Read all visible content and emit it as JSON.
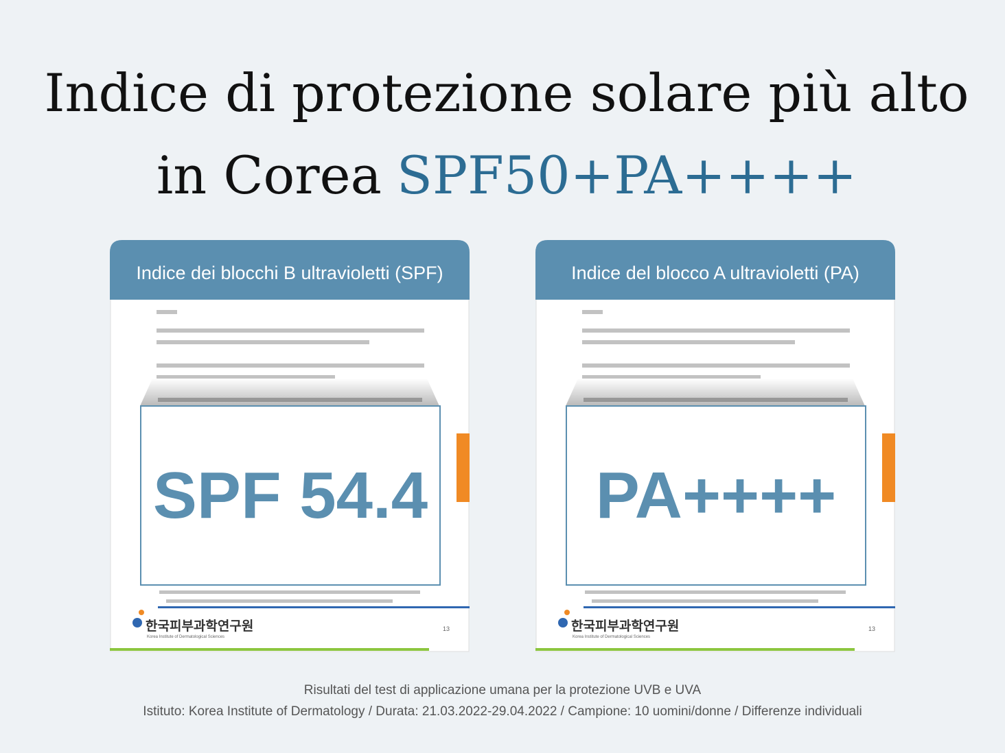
{
  "header": {
    "title_line1": "Indice di protezione solare più alto",
    "title_line2": "in Corea",
    "title_highlight": "SPF50+PA++++"
  },
  "cards": [
    {
      "heading": "Indice dei blocchi B ultravioletti (SPF)",
      "result": "SPF 54.4",
      "institute_logo": "한국피부과학연구원",
      "institute_name": "Korea Institute of Dermatological Sciences",
      "page_number": "13"
    },
    {
      "heading": "Indice del blocco A ultravioletti (PA)",
      "result": "PA++++",
      "institute_logo": "한국피부과학연구원",
      "institute_name": "Korea Institute of Dermatological Sciences",
      "page_number": "13"
    }
  ],
  "footer": {
    "line1": "Risultati del test di applicazione umana per la protezione UVB e UVA",
    "line2": "Istituto: Korea Institute of Dermatology / Durata: 21.03.2022-29.04.2022 / Campione: 10 uomini/donne / Differenze individuali"
  }
}
